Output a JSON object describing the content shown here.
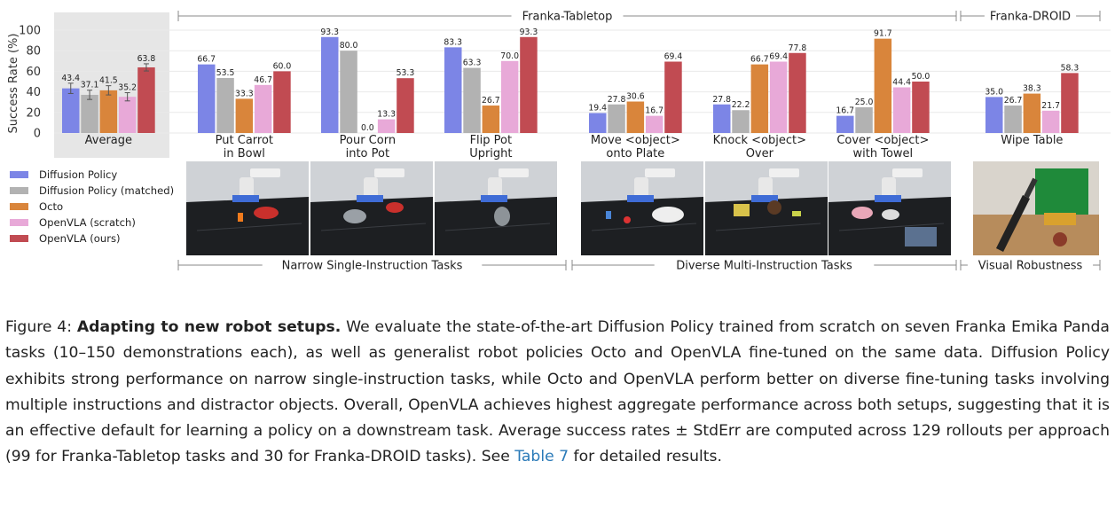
{
  "chart_data": {
    "type": "bar",
    "ylabel": "Success Rate (%)",
    "ylim": [
      0,
      100
    ],
    "yticks": [
      0,
      20,
      40,
      60,
      80,
      100
    ],
    "grid": true,
    "legend_placement": "left, below chart",
    "categories": [
      "Average",
      "Put Carrot\nin Bowl",
      "Pour Corn\ninto Pot",
      "Flip Pot\nUpright",
      "Move <object>\nonto Plate",
      "Knock <object>\nOver",
      "Cover <object>\nwith Towel",
      "Wipe Table"
    ],
    "series": [
      {
        "name": "Diffusion Policy",
        "color": "#7c85e6",
        "values": [
          43.4,
          66.7,
          93.3,
          83.3,
          19.4,
          27.8,
          16.7,
          35.0
        ]
      },
      {
        "name": "Diffusion Policy (matched)",
        "color": "#b2b2b2",
        "values": [
          37.1,
          53.5,
          80.0,
          63.3,
          27.8,
          22.2,
          25.0,
          26.7
        ]
      },
      {
        "name": "Octo",
        "color": "#d9853b",
        "values": [
          41.5,
          33.3,
          0.0,
          26.7,
          30.6,
          66.7,
          91.7,
          38.3
        ]
      },
      {
        "name": "OpenVLA (scratch)",
        "color": "#e8a9d8",
        "values": [
          35.2,
          46.7,
          13.3,
          70.0,
          16.7,
          69.4,
          44.4,
          21.7
        ]
      },
      {
        "name": "OpenVLA (ours)",
        "color": "#c14b52",
        "values": [
          63.8,
          60.0,
          53.3,
          93.3,
          69.4,
          77.8,
          50.0,
          58.3
        ]
      }
    ],
    "value_labels": [
      [
        "43.4",
        "66.7",
        "93.3",
        "83.3",
        "19.4",
        "27.8",
        "16.7",
        "35.0"
      ],
      [
        "37.1",
        "53.5",
        "80.0",
        "63.3",
        "27.8",
        "22.2",
        "25.0",
        "26.7"
      ],
      [
        "41.5",
        "33.3",
        "0.0",
        "26.7",
        "30.6",
        "66.7",
        "91.7",
        "38.3"
      ],
      [
        "35.2",
        "46.7",
        "13.3",
        "70.0",
        "16.7",
        "69.4",
        "44.4",
        "21.7"
      ],
      [
        "63.8",
        "60.0",
        "53.3",
        "93.3",
        "69.4",
        "77.8",
        "50.0",
        "58.3"
      ]
    ],
    "error_bars_on": "Average",
    "top_groups": [
      {
        "label": "Franka-Tabletop",
        "categories": [
          "Put Carrot\nin Bowl",
          "Pour Corn\ninto Pot",
          "Flip Pot\nUpright",
          "Move <object>\nonto Plate",
          "Knock <object>\nOver",
          "Cover <object>\nwith Towel"
        ]
      },
      {
        "label": "Franka-DROID",
        "categories": [
          "Wipe Table"
        ]
      }
    ],
    "bottom_groups": [
      {
        "label": "Narrow Single-Instruction Tasks",
        "categories": [
          "Put Carrot\nin Bowl",
          "Pour Corn\ninto Pot",
          "Flip Pot\nUpright"
        ]
      },
      {
        "label": "Diverse Multi-Instruction Tasks",
        "categories": [
          "Move <object>\nonto Plate",
          "Knock <object>\nOver",
          "Cover <object>\nwith Towel"
        ]
      },
      {
        "label": "Visual Robustness",
        "categories": [
          "Wipe Table"
        ]
      }
    ]
  },
  "caption": {
    "prefix": "Figure 4: ",
    "title": "Adapting to new robot setups.",
    "body": " We evaluate the state-of-the-art Diffusion Policy trained from scratch on seven Franka Emika Panda tasks (10–150 demonstrations each), as well as generalist robot policies Octo and OpenVLA fine-tuned on the same data. Diffusion Policy exhibits strong performance on narrow single-instruction tasks, while Octo and OpenVLA perform better on diverse fine-tuning tasks involving multiple instructions and distractor objects. Overall, OpenVLA achieves highest aggregate performance across both setups, suggesting that it is an effective default for learning a policy on a downstream task. Average success rates ± StdErr are computed across 129 rollouts per approach (99 for Franka-Tabletop tasks and 30 for Franka-DROID tasks). See ",
    "ref": "Table 7",
    "suffix": " for detailed results."
  }
}
